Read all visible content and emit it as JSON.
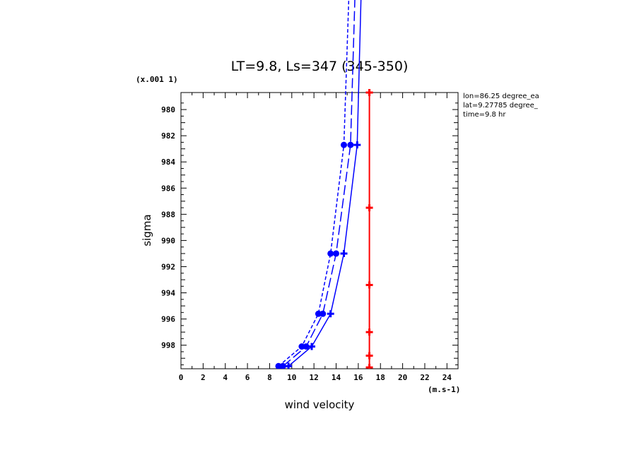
{
  "chart_data": {
    "type": "line",
    "title": "LT=9.8, Ls=347 (345-350)",
    "xlabel": "wind velocity",
    "ylabel": "sigma",
    "x_units": "(m.s-1)",
    "y_scale_note": "(x.001 1)",
    "xlim": [
      0,
      25
    ],
    "ylim": [
      999.8,
      978.7
    ],
    "y_inverted": true,
    "x_ticks": [
      "0",
      "2",
      "4",
      "6",
      "8",
      "10",
      "12",
      "14",
      "16",
      "18",
      "20",
      "22",
      "24"
    ],
    "y_ticks": [
      "980",
      "982",
      "984",
      "986",
      "988",
      "990",
      "992",
      "994",
      "996",
      "998"
    ],
    "grid": false,
    "annotations": [
      "lon=86.25 degree_ea",
      "lat=9.27785 degree_",
      "time=9.8 hr"
    ],
    "series": [
      {
        "color": "#0000ff",
        "style": "dashed",
        "marker": "circle",
        "x": [
          8.8,
          10.9,
          12.4,
          13.5,
          14.7,
          15.6
        ],
        "y": [
          999.6,
          998.1,
          995.6,
          991.0,
          982.7,
          960.0
        ]
      },
      {
        "color": "#0000ff",
        "style": "longdash",
        "marker": "circle",
        "x": [
          9.2,
          11.3,
          12.8,
          14.0,
          15.3,
          16.1
        ],
        "y": [
          999.6,
          998.1,
          995.6,
          991.0,
          982.7,
          960.0
        ]
      },
      {
        "color": "#0000ff",
        "style": "solid",
        "marker": "plus",
        "x": [
          9.7,
          11.8,
          13.5,
          14.7,
          15.9,
          16.6
        ],
        "y": [
          999.6,
          998.1,
          995.6,
          991.0,
          982.7,
          960.0
        ]
      },
      {
        "color": "#ff0000",
        "style": "solid",
        "marker": "plus",
        "x": [
          17.0,
          17.0,
          17.0,
          17.0,
          17.0,
          17.0,
          17.0
        ],
        "y": [
          999.7,
          998.8,
          997.0,
          993.4,
          987.5,
          978.7,
          978.7
        ]
      }
    ]
  }
}
